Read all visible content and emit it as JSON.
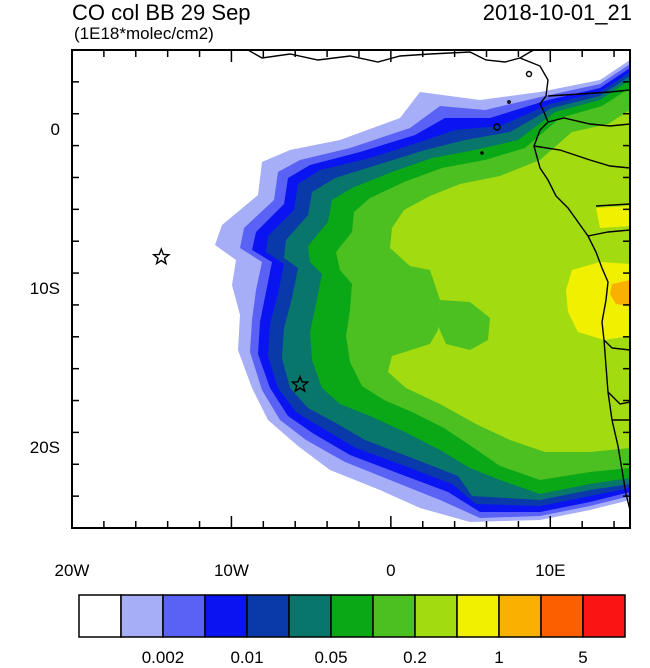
{
  "title": "CO col BB 29 Sep",
  "datetime": "2018-10-01_21",
  "units": "(1E18*molec/cm2)",
  "y_ticks": [
    {
      "label": "0",
      "lat": 0
    },
    {
      "label": "10S",
      "lat": -10
    },
    {
      "label": "20S",
      "lat": -20
    }
  ],
  "x_ticks": [
    {
      "label": "20W",
      "lon": -20
    },
    {
      "label": "10W",
      "lon": -10
    },
    {
      "label": "0",
      "lon": 0
    },
    {
      "label": "10E",
      "lon": 10
    }
  ],
  "map_extent": {
    "lon_min": -20,
    "lon_max": 15,
    "lat_min": -25,
    "lat_max": 5
  },
  "markers": [
    {
      "name": "star-marker",
      "lon": -14.4,
      "lat": -8
    },
    {
      "name": "star-marker",
      "lon": -5.7,
      "lat": -16
    }
  ],
  "colorbar": {
    "colors": [
      "#ffffff",
      "#a6aef8",
      "#5a62f5",
      "#0a14f0",
      "#0a3aaa",
      "#08766a",
      "#0aa816",
      "#4cc020",
      "#a2dc10",
      "#f0f000",
      "#fab000",
      "#fa6000",
      "#fa1414"
    ],
    "labels": [
      {
        "text": "0.002",
        "after_box": 2
      },
      {
        "text": "0.01",
        "after_box": 4
      },
      {
        "text": "0.05",
        "after_box": 6
      },
      {
        "text": "0.2",
        "after_box": 8
      },
      {
        "text": "1",
        "after_box": 10
      },
      {
        "text": "5",
        "after_box": 12
      }
    ]
  }
}
